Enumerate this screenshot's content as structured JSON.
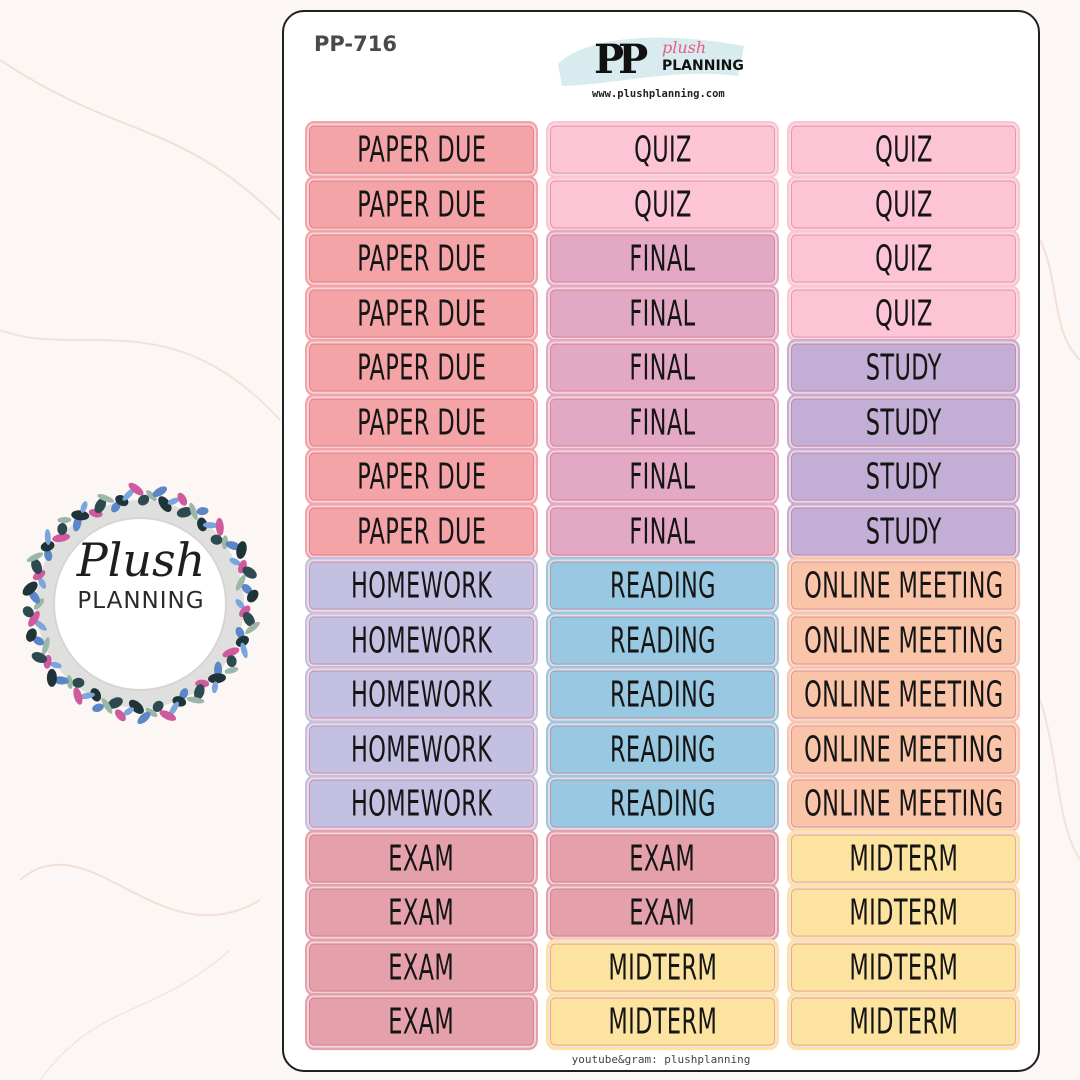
{
  "sheet": {
    "code": "PP-716",
    "brand_mark": "PP",
    "brand_plush": "plush",
    "brand_planning": "PLANNING",
    "brand_url": "www.plushplanning.com",
    "footer": "youtube&gram: plushplanning"
  },
  "badge": {
    "script": "Plush",
    "caps": "PLANNING"
  },
  "colors": {
    "paper_due": "#f4a3a6",
    "quiz": "#fcc4d4",
    "final": "#e3a8c4",
    "study": "#c3afd5",
    "homework": "#c3c0e2",
    "reading": "#99c9e2",
    "online_meeting": "#f9c4a8",
    "exam": "#e4a1ac",
    "midterm": "#fde3a0"
  },
  "columns": [
    [
      {
        "text": "PAPER DUE",
        "color": "paper_due"
      },
      {
        "text": "PAPER DUE",
        "color": "paper_due"
      },
      {
        "text": "PAPER DUE",
        "color": "paper_due"
      },
      {
        "text": "PAPER DUE",
        "color": "paper_due"
      },
      {
        "text": "PAPER DUE",
        "color": "paper_due"
      },
      {
        "text": "PAPER DUE",
        "color": "paper_due"
      },
      {
        "text": "PAPER DUE",
        "color": "paper_due"
      },
      {
        "text": "PAPER DUE",
        "color": "paper_due"
      },
      {
        "text": "HOMEWORK",
        "color": "homework"
      },
      {
        "text": "HOMEWORK",
        "color": "homework"
      },
      {
        "text": "HOMEWORK",
        "color": "homework"
      },
      {
        "text": "HOMEWORK",
        "color": "homework"
      },
      {
        "text": "HOMEWORK",
        "color": "homework"
      },
      {
        "text": "EXAM",
        "color": "exam"
      },
      {
        "text": "EXAM",
        "color": "exam"
      },
      {
        "text": "EXAM",
        "color": "exam"
      },
      {
        "text": "EXAM",
        "color": "exam"
      }
    ],
    [
      {
        "text": "QUIZ",
        "color": "quiz"
      },
      {
        "text": "QUIZ",
        "color": "quiz"
      },
      {
        "text": "FINAL",
        "color": "final"
      },
      {
        "text": "FINAL",
        "color": "final"
      },
      {
        "text": "FINAL",
        "color": "final"
      },
      {
        "text": "FINAL",
        "color": "final"
      },
      {
        "text": "FINAL",
        "color": "final"
      },
      {
        "text": "FINAL",
        "color": "final"
      },
      {
        "text": "READING",
        "color": "reading"
      },
      {
        "text": "READING",
        "color": "reading"
      },
      {
        "text": "READING",
        "color": "reading"
      },
      {
        "text": "READING",
        "color": "reading"
      },
      {
        "text": "READING",
        "color": "reading"
      },
      {
        "text": "EXAM",
        "color": "exam"
      },
      {
        "text": "EXAM",
        "color": "exam"
      },
      {
        "text": "MIDTERM",
        "color": "midterm"
      },
      {
        "text": "MIDTERM",
        "color": "midterm"
      }
    ],
    [
      {
        "text": "QUIZ",
        "color": "quiz"
      },
      {
        "text": "QUIZ",
        "color": "quiz"
      },
      {
        "text": "QUIZ",
        "color": "quiz"
      },
      {
        "text": "QUIZ",
        "color": "quiz"
      },
      {
        "text": "STUDY",
        "color": "study"
      },
      {
        "text": "STUDY",
        "color": "study"
      },
      {
        "text": "STUDY",
        "color": "study"
      },
      {
        "text": "STUDY",
        "color": "study"
      },
      {
        "text": "ONLINE MEETING",
        "color": "online_meeting"
      },
      {
        "text": "ONLINE MEETING",
        "color": "online_meeting"
      },
      {
        "text": "ONLINE MEETING",
        "color": "online_meeting"
      },
      {
        "text": "ONLINE MEETING",
        "color": "online_meeting"
      },
      {
        "text": "ONLINE MEETING",
        "color": "online_meeting"
      },
      {
        "text": "MIDTERM",
        "color": "midterm"
      },
      {
        "text": "MIDTERM",
        "color": "midterm"
      },
      {
        "text": "MIDTERM",
        "color": "midterm"
      },
      {
        "text": "MIDTERM",
        "color": "midterm"
      }
    ]
  ]
}
